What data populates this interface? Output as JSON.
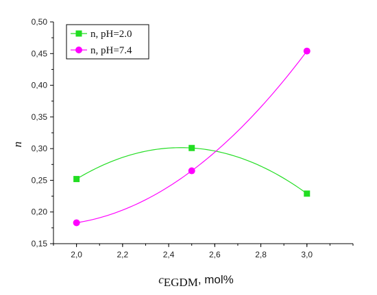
{
  "chart_data": {
    "type": "scatter",
    "title": "",
    "ylabel": "n",
    "xlabel": {
      "symbol": "c",
      "subscript": "EGDM",
      "unit": ", mol%"
    },
    "xlim": [
      1.9,
      3.2
    ],
    "ylim": [
      0.15,
      0.5
    ],
    "x_ticks": [
      2.0,
      2.2,
      2.4,
      2.6,
      2.8,
      3.0
    ],
    "x_tick_labels": [
      "2,0",
      "2,2",
      "2,4",
      "2,6",
      "2,8",
      "3,0"
    ],
    "y_ticks": [
      0.15,
      0.2,
      0.25,
      0.3,
      0.35,
      0.4,
      0.45,
      0.5
    ],
    "y_tick_labels": [
      "0,15",
      "0,20",
      "0,25",
      "0,30",
      "0,35",
      "0,40",
      "0,45",
      "0,50"
    ],
    "grid": false,
    "legend_position": "top-left",
    "series": [
      {
        "name": "n, pH=2.0",
        "marker": "square",
        "color": "#22dd22",
        "x": [
          2.0,
          2.5,
          3.0
        ],
        "y": [
          0.252,
          0.301,
          0.229
        ],
        "fit": "quadratic"
      },
      {
        "name": "n, pH=7.4",
        "marker": "circle",
        "color": "#ff00ff",
        "x": [
          2.0,
          2.5,
          3.0
        ],
        "y": [
          0.183,
          0.265,
          0.454
        ],
        "fit": "quadratic"
      }
    ]
  }
}
